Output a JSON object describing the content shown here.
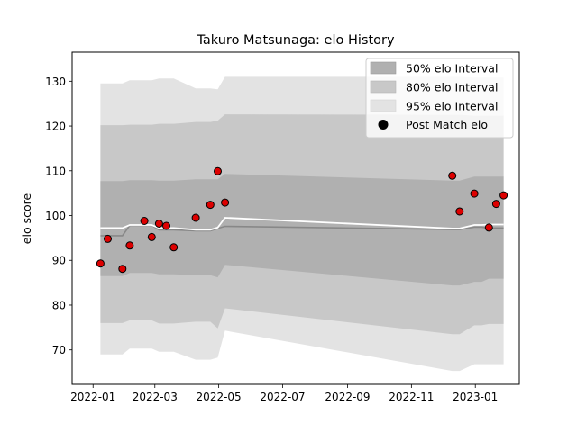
{
  "chart_data": {
    "type": "scatter",
    "title": "Takuro Matsunaga: elo History",
    "xlabel": "",
    "ylabel": "elo score",
    "xlim": [
      "2021-12-12",
      "2023-02-12"
    ],
    "ylim": [
      62.3,
      136.5
    ],
    "x_ticks": [
      "2022-01",
      "2022-03",
      "2022-05",
      "2022-07",
      "2022-09",
      "2022-11",
      "2023-01"
    ],
    "y_ticks": [
      70,
      80,
      90,
      100,
      110,
      120,
      130
    ],
    "grid": false,
    "legend_position": "top-right",
    "legend": {
      "band50": "50% elo Interval",
      "band80": "80% elo Interval",
      "band95": "95% elo Interval",
      "points": "Post Match elo"
    },
    "colors": {
      "band50": "#b0b0b0",
      "band80": "#c8c8c8",
      "band95": "#e3e3e3",
      "mean_line": "#ffffff",
      "median_line": "#888888",
      "point_fill": "#dd0000",
      "point_edge": "#000000"
    },
    "intervals": {
      "x": [
        "2022-01-08",
        "2022-01-15",
        "2022-01-29",
        "2022-02-05",
        "2022-02-19",
        "2022-02-26",
        "2022-03-05",
        "2022-03-12",
        "2022-03-19",
        "2022-04-09",
        "2022-04-23",
        "2022-04-30",
        "2022-05-07",
        "2022-12-10",
        "2022-12-17",
        "2022-12-31",
        "2023-01-07",
        "2023-01-14",
        "2023-01-21",
        "2023-01-28"
      ],
      "band95_low": [
        69,
        69,
        69,
        70.3,
        70.3,
        70.3,
        69.6,
        69.6,
        69.6,
        67.8,
        67.8,
        68.3,
        74.3,
        65.3,
        65.3,
        66.8,
        66.8,
        66.8,
        66.8,
        66.8
      ],
      "band95_high": [
        129.5,
        129.5,
        129.5,
        130.2,
        130.2,
        130.2,
        130.6,
        130.6,
        130.6,
        128.4,
        128.4,
        128.2,
        131,
        131,
        131,
        130.8,
        130.8,
        130.8,
        130.8,
        130.8
      ],
      "band80_low": [
        76,
        76,
        76,
        76.6,
        76.6,
        76.6,
        75.9,
        75.9,
        75.9,
        76.3,
        76.3,
        74.8,
        79.3,
        73.5,
        73.5,
        75.5,
        75.5,
        75.8,
        75.8,
        75.8
      ],
      "band80_high": [
        120.2,
        120.2,
        120.2,
        120.3,
        120.3,
        120.3,
        120.5,
        120.5,
        120.5,
        120.9,
        120.9,
        121.2,
        122.6,
        122.5,
        122.5,
        122.3,
        122.3,
        122.3,
        122.3,
        122.3
      ],
      "band50_low": [
        86.5,
        86.5,
        86.5,
        87.2,
        87.2,
        87.2,
        86.9,
        86.9,
        86.9,
        86.7,
        86.7,
        86.2,
        89,
        84.4,
        84.4,
        85.2,
        85.2,
        85.9,
        85.9,
        85.9
      ],
      "band50_high": [
        107.7,
        107.7,
        107.7,
        107.9,
        107.9,
        107.9,
        107.8,
        107.8,
        107.8,
        108.1,
        108.1,
        108.1,
        109.3,
        107.8,
        107.8,
        108.7,
        108.7,
        108.7,
        108.7,
        108.7
      ],
      "mean": [
        97.2,
        97.2,
        97.2,
        97.9,
        97.9,
        97.9,
        97.2,
        97.2,
        97.2,
        96.8,
        96.8,
        97.3,
        99.5,
        97.1,
        97.1,
        97.9,
        97.9,
        98,
        98,
        98
      ],
      "median": [
        95.5,
        95.5,
        95.5,
        97.8,
        97.8,
        97.8,
        96.8,
        96.8,
        96.8,
        96.6,
        96.6,
        97.1,
        97.6,
        96.9,
        96.9,
        97.4,
        97.4,
        97.2,
        97.2,
        97.2
      ]
    },
    "points": [
      {
        "x": "2022-01-08",
        "y": 89.3
      },
      {
        "x": "2022-01-15",
        "y": 94.8
      },
      {
        "x": "2022-01-29",
        "y": 88.1
      },
      {
        "x": "2022-02-05",
        "y": 93.3
      },
      {
        "x": "2022-02-19",
        "y": 98.8
      },
      {
        "x": "2022-02-26",
        "y": 95.2
      },
      {
        "x": "2022-03-05",
        "y": 98.2
      },
      {
        "x": "2022-03-12",
        "y": 97.7
      },
      {
        "x": "2022-03-19",
        "y": 92.9
      },
      {
        "x": "2022-04-09",
        "y": 99.5
      },
      {
        "x": "2022-04-23",
        "y": 102.4
      },
      {
        "x": "2022-04-30",
        "y": 109.9
      },
      {
        "x": "2022-05-07",
        "y": 102.9
      },
      {
        "x": "2022-12-10",
        "y": 108.9
      },
      {
        "x": "2022-12-17",
        "y": 100.9
      },
      {
        "x": "2022-12-31",
        "y": 104.9
      },
      {
        "x": "2023-01-14",
        "y": 97.3
      },
      {
        "x": "2023-01-21",
        "y": 102.6
      },
      {
        "x": "2023-01-28",
        "y": 104.5
      }
    ]
  }
}
